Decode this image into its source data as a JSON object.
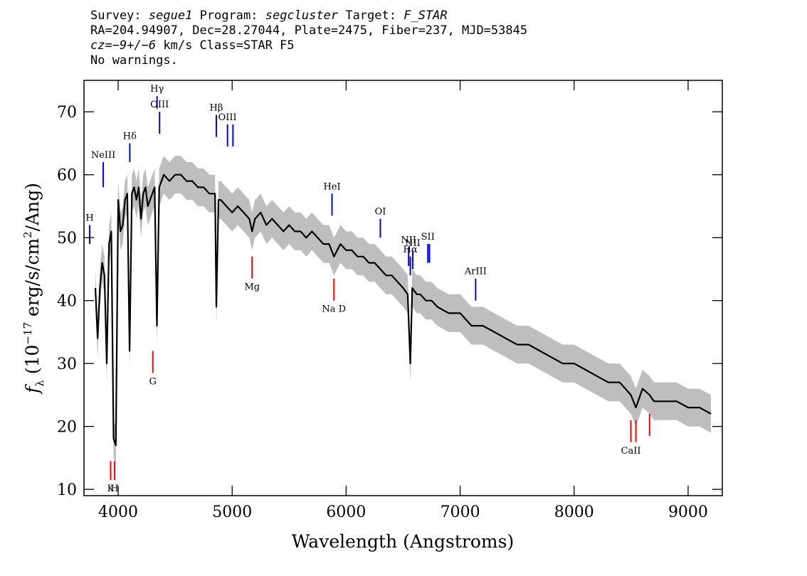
{
  "header": {
    "survey_label": "Survey:",
    "survey": "segue1",
    "program_label": "Program:",
    "program": "segcluster",
    "target_label": "Target:",
    "target": "F_STAR",
    "line2": "RA=204.94907, Dec=28.27044, Plate=2475, Fiber=237, MJD=53845",
    "cz_label": "cz=",
    "cz_value": "−9+/−6",
    "cz_rest": " km/s Class=STAR F5",
    "line4": "No warnings."
  },
  "chart_data": {
    "type": "line",
    "xlabel": "Wavelength (Angstroms)",
    "ylabel_prefix": "f",
    "ylabel_sub": "λ",
    "ylabel_main": " (10",
    "ylabel_exp": "−17",
    "ylabel_rest": " erg/s/cm",
    "ylabel_exp2": "2",
    "ylabel_tail": "/Ang)",
    "xlim": [
      3700,
      9300
    ],
    "ylim": [
      9,
      75
    ],
    "xticks": [
      4000,
      5000,
      6000,
      7000,
      8000,
      9000
    ],
    "yticks": [
      10,
      20,
      30,
      40,
      50,
      60,
      70
    ],
    "colors": {
      "flux": "#000000",
      "error_band": "#bebebe",
      "emission": "#0000ff",
      "absorption": "#ff0000",
      "axes": "#000000"
    },
    "series": [
      {
        "x": [
          3800,
          3820,
          3840,
          3860,
          3880,
          3900,
          3920,
          3940,
          3960,
          3980,
          4000,
          4020,
          4040,
          4060,
          4080,
          4100,
          4120,
          4140,
          4160,
          4180,
          4200,
          4220,
          4240,
          4260,
          4280,
          4300,
          4320,
          4340,
          4360,
          4380,
          4400,
          4450,
          4500,
          4550,
          4600,
          4650,
          4700,
          4750,
          4800,
          4850,
          4861,
          4880,
          4900,
          4950,
          5000,
          5050,
          5100,
          5150,
          5175,
          5200,
          5250,
          5300,
          5350,
          5400,
          5450,
          5500,
          5550,
          5600,
          5650,
          5700,
          5750,
          5800,
          5850,
          5893,
          5950,
          6000,
          6050,
          6100,
          6150,
          6200,
          6250,
          6300,
          6350,
          6400,
          6450,
          6500,
          6540,
          6563,
          6580,
          6620,
          6650,
          6700,
          6750,
          6800,
          6900,
          7000,
          7100,
          7200,
          7300,
          7400,
          7500,
          7600,
          7700,
          7800,
          7900,
          8000,
          8100,
          8200,
          8300,
          8400,
          8498,
          8542,
          8600,
          8662,
          8700,
          8800,
          8900,
          9000,
          9100,
          9200
        ],
        "y": [
          42,
          34,
          42,
          46,
          44,
          30,
          49,
          51,
          18,
          17,
          56,
          51,
          52,
          56,
          57,
          32,
          57,
          58,
          56,
          58,
          53,
          57,
          58,
          55,
          56,
          57,
          58,
          36,
          58,
          59,
          60,
          59,
          60,
          60,
          59,
          59,
          58,
          58,
          57,
          57,
          39,
          56,
          56,
          55,
          54,
          55,
          54,
          53,
          51,
          53,
          54,
          52,
          53,
          52,
          51,
          52,
          51,
          51,
          50,
          51,
          50,
          49,
          49,
          47,
          49,
          48,
          48,
          47,
          47,
          46,
          46,
          45,
          44,
          44,
          43,
          42,
          41,
          30,
          42,
          41,
          41,
          40,
          40,
          39,
          38,
          38,
          36,
          36,
          35,
          34,
          33,
          33,
          32,
          31,
          30,
          30,
          29,
          28,
          27,
          27,
          25,
          23,
          26,
          25,
          24,
          24,
          24,
          23,
          23,
          22
        ]
      }
    ],
    "line_markers": [
      {
        "label": "H",
        "wave": 3750,
        "kind": "emission",
        "lo": 49,
        "hi": 52
      },
      {
        "label": "NeIII",
        "wave": 3869,
        "kind": "emission",
        "lo": 58,
        "hi": 62
      },
      {
        "label": "Hδ",
        "wave": 4102,
        "kind": "emission",
        "lo": 62,
        "hi": 65
      },
      {
        "label": "Hγ",
        "wave": 4341,
        "kind": "emission",
        "lo": 70.5,
        "hi": 72.5
      },
      {
        "label": "OIII",
        "wave": 4363,
        "kind": "emission",
        "lo": 66.5,
        "hi": 70
      },
      {
        "label": "Hβ",
        "wave": 4861,
        "kind": "emission",
        "lo": 66,
        "hi": 69.5
      },
      {
        "label": "OIII",
        "wave": 4959,
        "kind": "emission",
        "lo": 64.5,
        "hi": 68
      },
      {
        "label": "",
        "wave": 5007,
        "kind": "emission",
        "lo": 64.5,
        "hi": 68
      },
      {
        "label": "HeI",
        "wave": 5876,
        "kind": "emission",
        "lo": 53.5,
        "hi": 57
      },
      {
        "label": "OI",
        "wave": 6300,
        "kind": "emission",
        "lo": 50,
        "hi": 53
      },
      {
        "label": "NII",
        "wave": 6548,
        "kind": "emission",
        "lo": 45.5,
        "hi": 48.5
      },
      {
        "label": "Hα",
        "wave": 6563,
        "kind": "emission",
        "lo": 44,
        "hi": 47
      },
      {
        "label": "NII",
        "wave": 6584,
        "kind": "emission",
        "lo": 45,
        "hi": 48
      },
      {
        "label": "SII",
        "wave": 6717,
        "kind": "emission",
        "lo": 46,
        "hi": 49
      },
      {
        "label": "",
        "wave": 6731,
        "kind": "emission",
        "lo": 46,
        "hi": 49
      },
      {
        "label": "ArIII",
        "wave": 7136,
        "kind": "emission",
        "lo": 40,
        "hi": 43.5
      },
      {
        "label": "G",
        "wave": 4304,
        "kind": "absorption",
        "lo": 28.5,
        "hi": 32
      },
      {
        "label": "Mg",
        "wave": 5175,
        "kind": "absorption",
        "lo": 43.5,
        "hi": 47
      },
      {
        "label": "Na D",
        "wave": 5893,
        "kind": "absorption",
        "lo": 40,
        "hi": 43.5
      },
      {
        "label": "K",
        "wave": 3934,
        "kind": "absorption",
        "lo": 11.5,
        "hi": 14.5
      },
      {
        "label": "H",
        "wave": 3969,
        "kind": "absorption",
        "lo": 11.5,
        "hi": 14.5
      },
      {
        "label": "CaII",
        "wave": 8498,
        "kind": "absorption",
        "lo": 17.5,
        "hi": 21
      },
      {
        "label": "",
        "wave": 8542,
        "kind": "absorption",
        "lo": 17.5,
        "hi": 21
      },
      {
        "label": "",
        "wave": 8662,
        "kind": "absorption",
        "lo": 18.5,
        "hi": 22
      }
    ]
  }
}
